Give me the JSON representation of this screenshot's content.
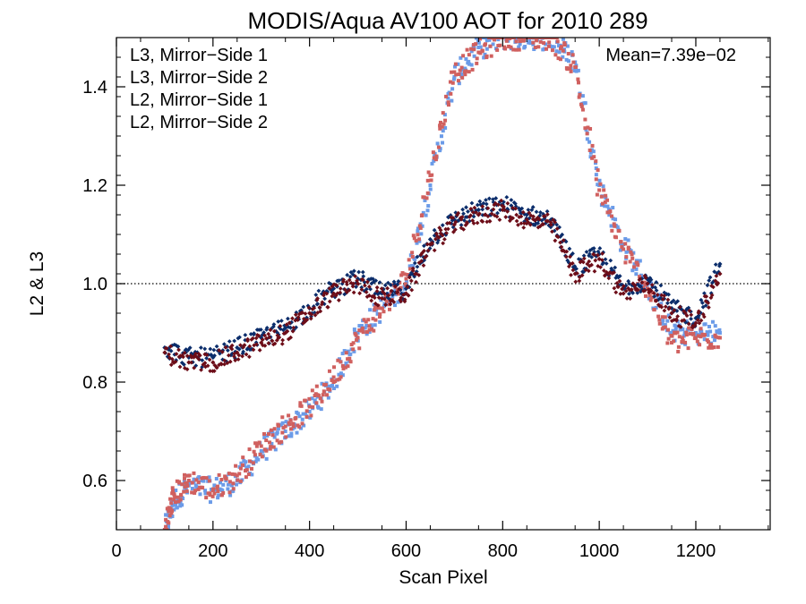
{
  "chart_data": {
    "type": "scatter",
    "title": "MODIS/Aqua AV100 AOT for 2010 289",
    "xlabel": "Scan Pixel",
    "ylabel": "L2 & L3",
    "xlim": [
      0,
      1354
    ],
    "ylim": [
      0.5,
      1.5
    ],
    "x_ticks": [
      0,
      200,
      400,
      600,
      800,
      1000,
      1200
    ],
    "x_tick_labels": [
      "0",
      "200",
      "400",
      "600",
      "800",
      "1000",
      "1200"
    ],
    "y_ticks": [
      0.6,
      0.8,
      1.0,
      1.2,
      1.4
    ],
    "y_tick_labels": [
      "0.6",
      "0.8",
      "1.0",
      "1.2",
      "1.4"
    ],
    "reference_line": {
      "y": 1.0,
      "style": "dotted"
    },
    "annotation": {
      "text": "Mean=7.39e−02",
      "color": "#d0605f"
    },
    "legend_position": "top-left",
    "series": [
      {
        "name": "L3, Mirror−Side 1",
        "color": "#0b2d6b",
        "marker": "diamond",
        "points": [
          [
            100,
            0.87
          ],
          [
            150,
            0.85
          ],
          [
            200,
            0.85
          ],
          [
            250,
            0.87
          ],
          [
            300,
            0.89
          ],
          [
            350,
            0.91
          ],
          [
            400,
            0.95
          ],
          [
            450,
            0.99
          ],
          [
            500,
            1.01
          ],
          [
            550,
            0.98
          ],
          [
            600,
            0.99
          ],
          [
            650,
            1.09
          ],
          [
            700,
            1.13
          ],
          [
            750,
            1.15
          ],
          [
            800,
            1.16
          ],
          [
            850,
            1.14
          ],
          [
            900,
            1.13
          ],
          [
            950,
            1.03
          ],
          [
            1000,
            1.06
          ],
          [
            1050,
            0.99
          ],
          [
            1100,
            1.01
          ],
          [
            1150,
            0.95
          ],
          [
            1200,
            0.93
          ],
          [
            1250,
            1.04
          ]
        ]
      },
      {
        "name": "L3, Mirror−Side 2",
        "color": "#6d0d18",
        "marker": "diamond",
        "points": [
          [
            100,
            0.86
          ],
          [
            150,
            0.84
          ],
          [
            200,
            0.84
          ],
          [
            250,
            0.86
          ],
          [
            300,
            0.88
          ],
          [
            350,
            0.9
          ],
          [
            400,
            0.94
          ],
          [
            450,
            0.98
          ],
          [
            500,
            1.0
          ],
          [
            550,
            0.97
          ],
          [
            600,
            0.98
          ],
          [
            650,
            1.08
          ],
          [
            700,
            1.12
          ],
          [
            750,
            1.14
          ],
          [
            800,
            1.15
          ],
          [
            850,
            1.13
          ],
          [
            900,
            1.12
          ],
          [
            950,
            1.02
          ],
          [
            1000,
            1.05
          ],
          [
            1050,
            0.98
          ],
          [
            1100,
            1.0
          ],
          [
            1150,
            0.94
          ],
          [
            1200,
            0.92
          ],
          [
            1250,
            1.02
          ]
        ]
      },
      {
        "name": "L2, Mirror−Side 1",
        "color": "#6b9be8",
        "marker": "square",
        "points": [
          [
            100,
            0.5
          ],
          [
            120,
            0.56
          ],
          [
            150,
            0.59
          ],
          [
            200,
            0.58
          ],
          [
            250,
            0.6
          ],
          [
            300,
            0.66
          ],
          [
            350,
            0.7
          ],
          [
            400,
            0.74
          ],
          [
            450,
            0.8
          ],
          [
            500,
            0.9
          ],
          [
            550,
            0.95
          ],
          [
            600,
            1.0
          ],
          [
            650,
            1.2
          ],
          [
            700,
            1.42
          ],
          [
            750,
            1.48
          ],
          [
            800,
            1.5
          ],
          [
            850,
            1.5
          ],
          [
            900,
            1.5
          ],
          [
            950,
            1.45
          ],
          [
            1000,
            1.2
          ],
          [
            1050,
            1.08
          ],
          [
            1100,
            1.0
          ],
          [
            1150,
            0.9
          ],
          [
            1200,
            0.9
          ],
          [
            1250,
            0.9
          ]
        ]
      },
      {
        "name": "L2, Mirror−Side 2",
        "color": "#d0605f",
        "marker": "square",
        "points": [
          [
            100,
            0.5
          ],
          [
            120,
            0.57
          ],
          [
            150,
            0.6
          ],
          [
            200,
            0.58
          ],
          [
            250,
            0.61
          ],
          [
            300,
            0.67
          ],
          [
            350,
            0.71
          ],
          [
            400,
            0.75
          ],
          [
            450,
            0.81
          ],
          [
            500,
            0.89
          ],
          [
            550,
            0.95
          ],
          [
            600,
            1.01
          ],
          [
            650,
            1.22
          ],
          [
            700,
            1.43
          ],
          [
            750,
            1.47
          ],
          [
            800,
            1.5
          ],
          [
            850,
            1.5
          ],
          [
            900,
            1.5
          ],
          [
            950,
            1.44
          ],
          [
            1000,
            1.19
          ],
          [
            1050,
            1.07
          ],
          [
            1100,
            0.99
          ],
          [
            1150,
            0.88
          ],
          [
            1200,
            0.89
          ],
          [
            1250,
            0.89
          ]
        ]
      }
    ]
  }
}
